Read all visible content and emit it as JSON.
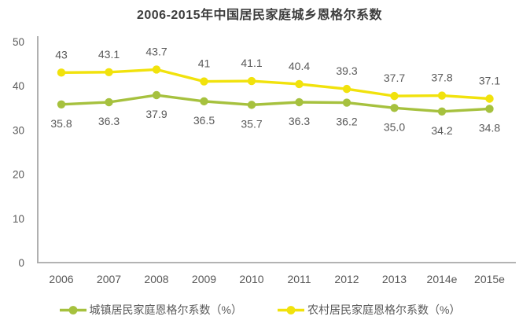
{
  "chart_data": {
    "type": "line",
    "title": "2006-2015年中国居民家庭城乡恩格尔系数",
    "categories": [
      "2006",
      "2007",
      "2008",
      "2009",
      "2010",
      "2011",
      "2012",
      "2013",
      "2014e",
      "2015e"
    ],
    "series": [
      {
        "name": "城镇居民家庭恩格尔系数（%）",
        "values": [
          35.8,
          36.3,
          37.9,
          36.5,
          35.7,
          36.3,
          36.2,
          35.0,
          34.2,
          34.8
        ],
        "labels": [
          "35.8",
          "36.3",
          "37.9",
          "36.5",
          "35.7",
          "36.3",
          "36.2",
          "35.0",
          "34.2",
          "34.8"
        ],
        "color": "#a6c13e",
        "label_position": "below"
      },
      {
        "name": "农村居民家庭恩格尔系数（%）",
        "values": [
          43,
          43.1,
          43.7,
          41,
          41.1,
          40.4,
          39.3,
          37.7,
          37.8,
          37.1
        ],
        "labels": [
          "43",
          "43.1",
          "43.7",
          "41",
          "41.1",
          "40.4",
          "39.3",
          "37.7",
          "37.8",
          "37.1"
        ],
        "color": "#f1e20c",
        "label_position": "above"
      }
    ],
    "y_ticks": [
      0,
      10,
      20,
      30,
      40,
      50
    ],
    "ylim": [
      0,
      50
    ],
    "grid": false,
    "legend_position": "bottom",
    "axis_color": "#a8a8a8",
    "text_color": "#595959",
    "title_color": "#3d3d3d"
  }
}
